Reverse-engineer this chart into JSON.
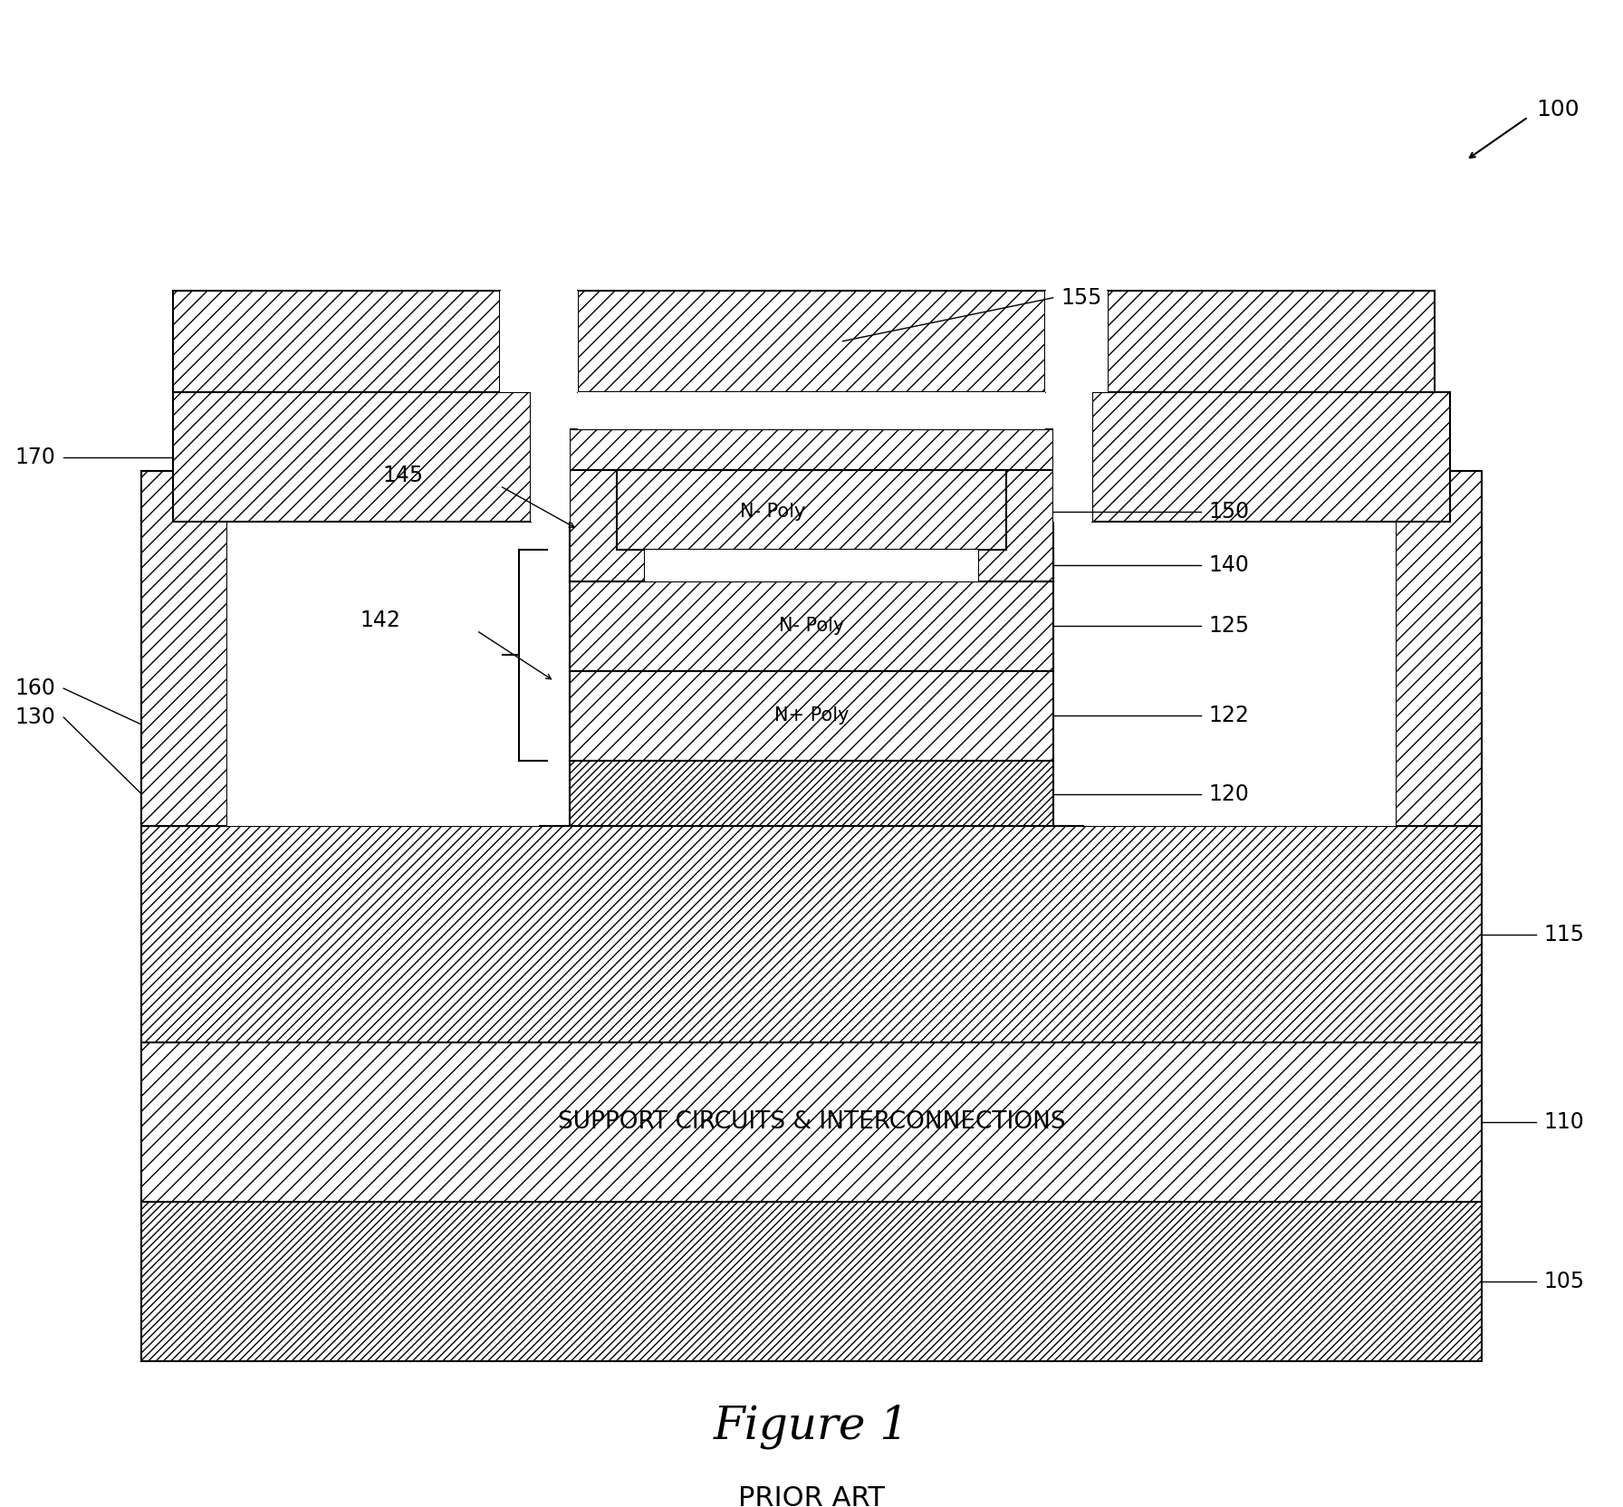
{
  "fig_width": 17.92,
  "fig_height": 16.64,
  "bg_color": "#ffffff",
  "figure_label": "Figure 1",
  "prior_art_label": "PRIOR ART",
  "support_text": "SUPPORT CIRCUITS & INTERCONNECTIONS",
  "lw": 1.5,
  "label_fs": 17,
  "fig_label_fs": 36,
  "prior_art_fs": 22,
  "support_fs": 19,
  "poly_fs": 15,
  "ref100_fs": 18
}
